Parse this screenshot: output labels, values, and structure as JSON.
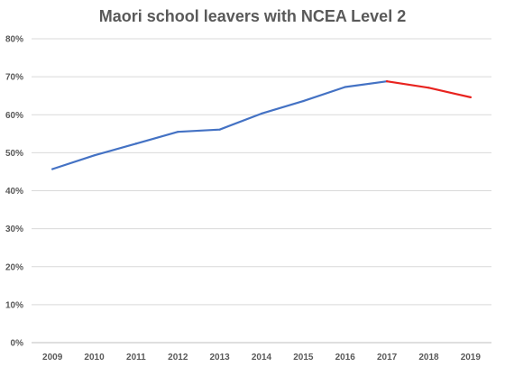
{
  "chart_data": {
    "type": "line",
    "title": "Maori school leavers with NCEA Level 2",
    "xlabel": "",
    "ylabel": "",
    "categories": [
      "2009",
      "2010",
      "2011",
      "2012",
      "2013",
      "2014",
      "2015",
      "2016",
      "2017",
      "2018",
      "2019"
    ],
    "ylim": [
      0,
      80
    ],
    "yticks": [
      "0%",
      "10%",
      "20%",
      "30%",
      "40%",
      "50%",
      "60%",
      "70%",
      "80%"
    ],
    "grid": true,
    "legend": "none",
    "series": [
      {
        "color": "#4472c4",
        "x": [
          "2009",
          "2010",
          "2011",
          "2012",
          "2013",
          "2014",
          "2015",
          "2016",
          "2017"
        ],
        "values": [
          45.7,
          49.3,
          52.4,
          55.5,
          56.1,
          60.3,
          63.6,
          67.3,
          68.8
        ]
      },
      {
        "color": "#e8231f",
        "x": [
          "2017",
          "2018",
          "2019"
        ],
        "values": [
          68.8,
          67.1,
          64.6
        ]
      }
    ]
  }
}
